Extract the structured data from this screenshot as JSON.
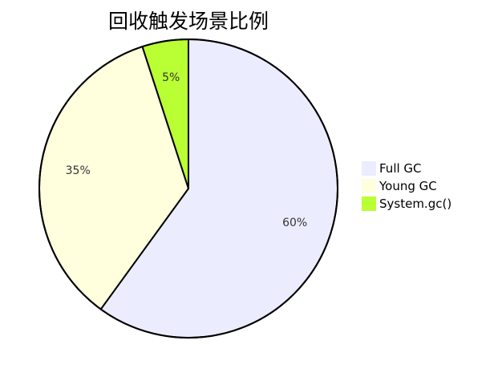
{
  "chart_data": {
    "type": "pie",
    "title": "回收触发场景比例",
    "slices": [
      {
        "label": "Full GC",
        "value": 60,
        "value_label": "60%",
        "color": "#ECECFF"
      },
      {
        "label": "Young GC",
        "value": 35,
        "value_label": "35%",
        "color": "#FFFFDE"
      },
      {
        "label": "System.gc()",
        "value": 5,
        "value_label": "5%",
        "color": "#B9FF33"
      }
    ],
    "legend_position": "right",
    "start_angle": "12 o'clock, clockwise"
  }
}
